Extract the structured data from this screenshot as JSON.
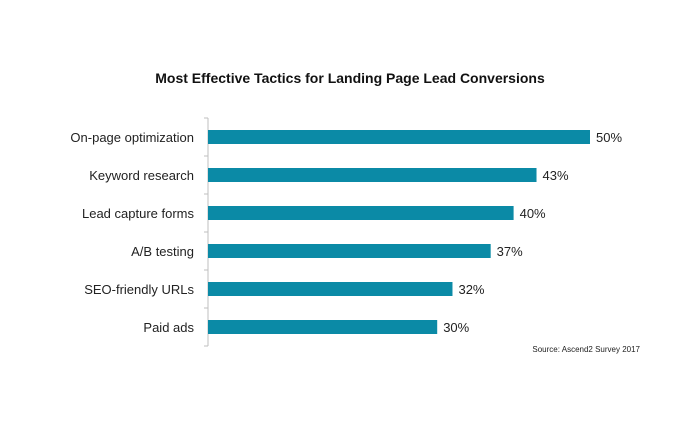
{
  "chart_data": {
    "type": "bar",
    "orientation": "horizontal",
    "title": "Most Effective Tactics for Landing Page Lead Conversions",
    "categories": [
      "On-page optimization",
      "Keyword research",
      "Lead capture forms",
      "A/B testing",
      "SEO-friendly URLs",
      "Paid ads"
    ],
    "values": [
      50,
      43,
      40,
      37,
      32,
      30
    ],
    "value_labels": [
      "50%",
      "43%",
      "40%",
      "37%",
      "32%",
      "30%"
    ],
    "unit": "%",
    "xlim": [
      0,
      50
    ],
    "grid": false,
    "legend": "none",
    "bar_color": "#0b8aa6",
    "source": "Source: Ascend2 Survey 2017"
  }
}
